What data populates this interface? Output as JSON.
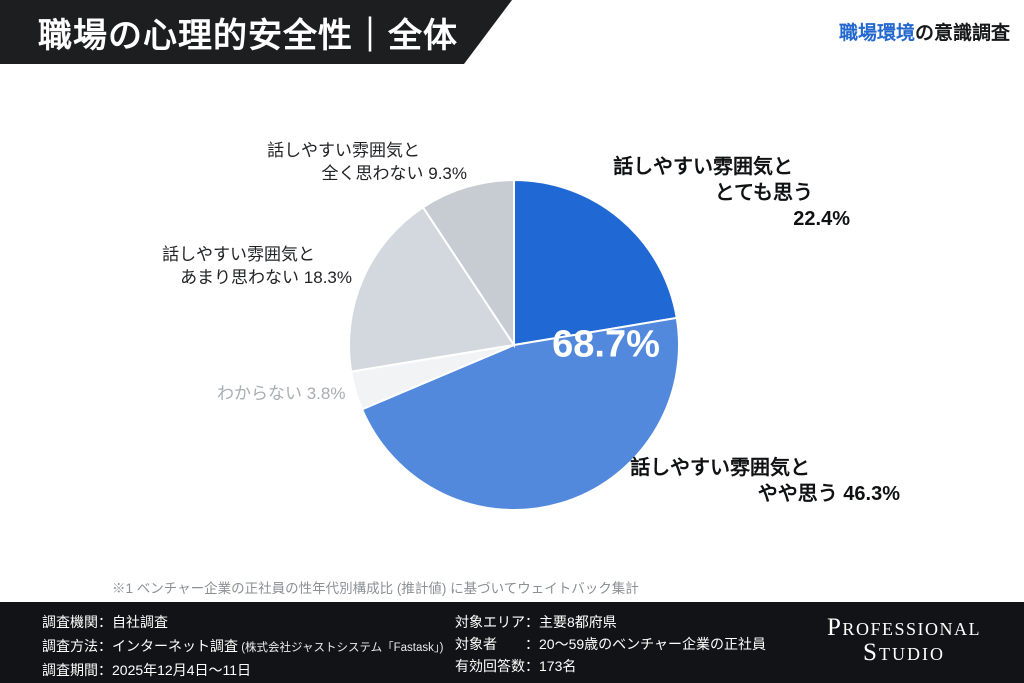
{
  "header": {
    "title": "職場の心理的安全性｜全体",
    "tag_highlight": "職場環境",
    "tag_rest": "の意識調査",
    "accent_color": "#2468cf",
    "banner_color": "#1d1e20"
  },
  "chart_data": {
    "type": "pie",
    "title": "職場の心理的安全性｜全体",
    "unit": "%",
    "direction": "clockwise",
    "start_angle_deg": 0,
    "segments": [
      {
        "label": "話しやすい雰囲気ととても思う",
        "value": 22.4,
        "color": "#2069d4"
      },
      {
        "label": "話しやすい雰囲気とやや思う",
        "value": 46.3,
        "color": "#5289dd"
      },
      {
        "label": "わからない",
        "value": 3.8,
        "color": "#f1f3f5"
      },
      {
        "label": "話しやすい雰囲気とあまり思わない",
        "value": 18.3,
        "color": "#d3d8de"
      },
      {
        "label": "話しやすい雰囲気と全く思わない",
        "value": 9.3,
        "color": "#c7ccd3"
      }
    ],
    "center_label": "68.7%",
    "legend_position": "none"
  },
  "callouts": {
    "strongly_agree": {
      "line1": "話しやすい雰囲気と",
      "line2": "とても思う",
      "line3": "22.4%"
    },
    "somewhat_agree": {
      "line1": "話しやすい雰囲気と",
      "line2": "やや思う  46.3%"
    },
    "dont_know": {
      "line1": "わからない 3.8%"
    },
    "somewhat_disagree": {
      "line1": "話しやすい雰囲気と",
      "line2": "あまり思わない 18.3%"
    },
    "strongly_disagree": {
      "line1": "話しやすい雰囲気と",
      "line2": "全く思わない 9.3%"
    }
  },
  "footnote": "※1 ベンチャー企業の正社員の性年代別構成比 (推計値) に基づいてウェイトバック集計",
  "footer": {
    "left": [
      {
        "text": "調査機関：自社調査",
        "note": ""
      },
      {
        "text": "調査方法：インターネット調査",
        "note": " (株式会社ジャストシステム「Fastask」)"
      },
      {
        "text": "調査期間：2025年12月4日〜11日",
        "note": ""
      }
    ],
    "right": [
      {
        "text": "対象エリア：主要8都府県"
      },
      {
        "text": "対象者　　：20〜59歳のベンチャー企業の正社員"
      },
      {
        "text": "有効回答数：173名"
      }
    ],
    "logo": {
      "line1": "Professional",
      "line2": "Studio"
    }
  }
}
